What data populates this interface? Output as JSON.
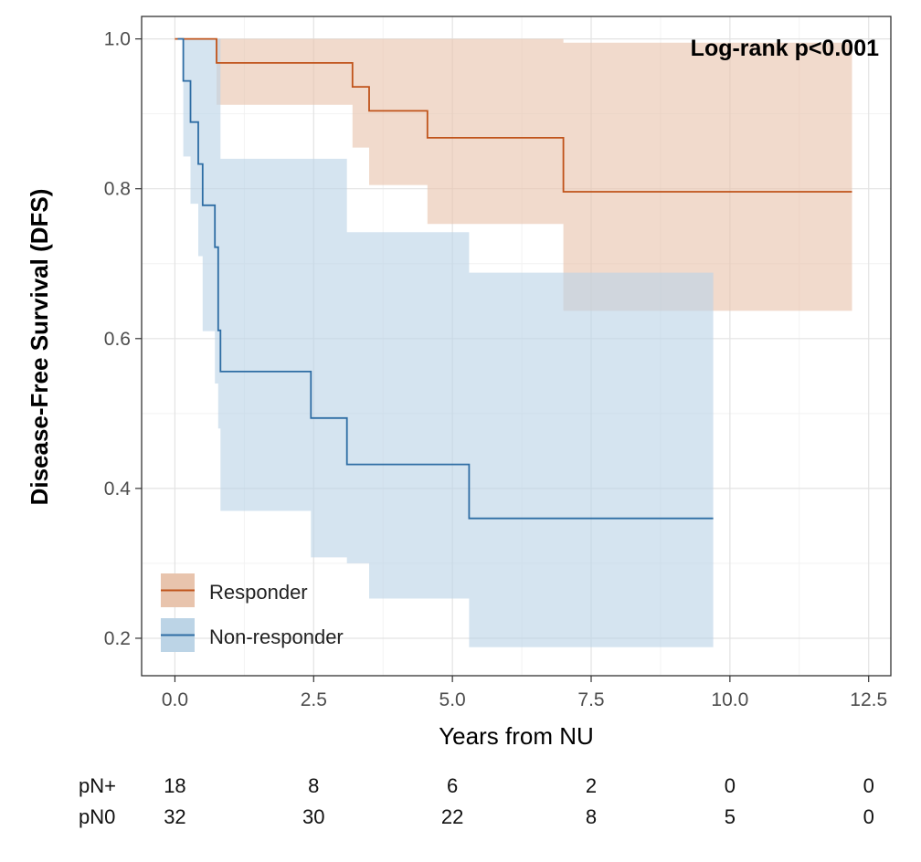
{
  "chart_data": {
    "type": "line",
    "subtype": "kaplan-meier",
    "title": "",
    "xlabel": "Years from NU",
    "ylabel": "Disease-Free Survival (DFS)",
    "xlim": [
      -0.6,
      12.9
    ],
    "ylim": [
      0.15,
      1.03
    ],
    "xticks": [
      "0.0",
      "2.5",
      "5.0",
      "7.5",
      "10.0",
      "12.5"
    ],
    "xtick_values": [
      0,
      2.5,
      5,
      7.5,
      10,
      12.5
    ],
    "yticks": [
      "0.2",
      "0.4",
      "0.6",
      "0.8",
      "1.0"
    ],
    "ytick_values": [
      0.2,
      0.4,
      0.6,
      0.8,
      1.0
    ],
    "grid": true,
    "annotation": "Log-rank p<0.001",
    "legend": {
      "position": "bottom-left",
      "entries": [
        "Responder",
        "Non-responder"
      ]
    },
    "series": [
      {
        "name": "Responder",
        "color": "#c0531a",
        "band_color": "#e8c4ad",
        "steps": [
          [
            0.0,
            1.0
          ],
          [
            0.75,
            0.968
          ],
          [
            3.2,
            0.936
          ],
          [
            3.5,
            0.904
          ],
          [
            4.55,
            0.868
          ],
          [
            7.0,
            0.796
          ],
          [
            12.2,
            0.796
          ]
        ],
        "lower": [
          [
            0.0,
            1.0
          ],
          [
            0.75,
            0.912
          ],
          [
            3.2,
            0.855
          ],
          [
            3.5,
            0.805
          ],
          [
            4.55,
            0.753
          ],
          [
            7.0,
            0.637
          ],
          [
            12.2,
            0.637
          ]
        ],
        "upper": [
          [
            0.0,
            1.0
          ],
          [
            4.55,
            1.0
          ],
          [
            7.0,
            0.995
          ],
          [
            12.2,
            0.995
          ]
        ]
      },
      {
        "name": "Non-responder",
        "color": "#2e6da4",
        "band_color": "#bcd4e6",
        "steps": [
          [
            0.05,
            1.0
          ],
          [
            0.15,
            0.944
          ],
          [
            0.28,
            0.889
          ],
          [
            0.42,
            0.833
          ],
          [
            0.5,
            0.778
          ],
          [
            0.72,
            0.722
          ],
          [
            0.78,
            0.611
          ],
          [
            0.82,
            0.556
          ],
          [
            2.45,
            0.494
          ],
          [
            3.1,
            0.432
          ],
          [
            5.3,
            0.36
          ],
          [
            9.7,
            0.36
          ]
        ],
        "lower": [
          [
            0.05,
            1.0
          ],
          [
            0.15,
            0.843
          ],
          [
            0.28,
            0.78
          ],
          [
            0.42,
            0.71
          ],
          [
            0.5,
            0.61
          ],
          [
            0.72,
            0.54
          ],
          [
            0.78,
            0.48
          ],
          [
            0.82,
            0.37
          ],
          [
            2.45,
            0.308
          ],
          [
            3.1,
            0.3
          ],
          [
            3.5,
            0.253
          ],
          [
            5.3,
            0.188
          ],
          [
            9.7,
            0.188
          ]
        ],
        "upper": [
          [
            0.05,
            1.0
          ],
          [
            0.72,
            1.0
          ],
          [
            0.82,
            0.84
          ],
          [
            2.45,
            0.84
          ],
          [
            3.1,
            0.742
          ],
          [
            5.3,
            0.688
          ],
          [
            9.7,
            0.688
          ]
        ]
      }
    ],
    "risk_table": {
      "times": [
        0,
        2.5,
        5,
        7.5,
        10,
        12.5
      ],
      "rows": [
        {
          "label": "pN+",
          "counts": [
            "18",
            "8",
            "6",
            "2",
            "0",
            "0"
          ]
        },
        {
          "label": "pN0",
          "counts": [
            "32",
            "30",
            "22",
            "8",
            "5",
            "0"
          ]
        }
      ]
    }
  }
}
